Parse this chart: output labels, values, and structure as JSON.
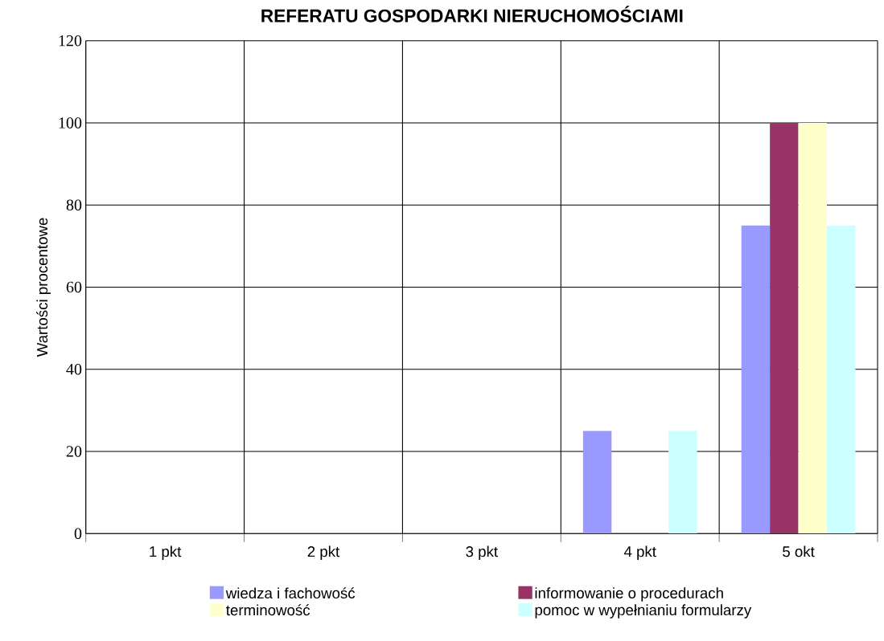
{
  "chart_data": {
    "type": "bar",
    "title": "REFERATU GOSPODARKI NIERUCHOMOŚCIAMI",
    "ylabel": "Wartości procentowe",
    "categories": [
      "1 pkt",
      "2 pkt",
      "3 pkt",
      "4 pkt",
      "5 okt"
    ],
    "series": [
      {
        "name": "wiedza i fachowość",
        "color": "#9999ff",
        "values": [
          0,
          0,
          0,
          25,
          75
        ]
      },
      {
        "name": "informowanie o procedurach",
        "color": "#993366",
        "values": [
          0,
          0,
          0,
          0,
          100
        ]
      },
      {
        "name": "terminowość",
        "color": "#ffffcc",
        "values": [
          0,
          0,
          0,
          0,
          100
        ]
      },
      {
        "name": "pomoc w wypełnianiu formularzy",
        "color": "#ccffff",
        "values": [
          0,
          0,
          0,
          25,
          75
        ]
      }
    ],
    "ylim": [
      0,
      120
    ],
    "yticks": [
      0,
      20,
      40,
      60,
      80,
      100,
      120
    ],
    "grid": true,
    "legend": "bottom"
  }
}
